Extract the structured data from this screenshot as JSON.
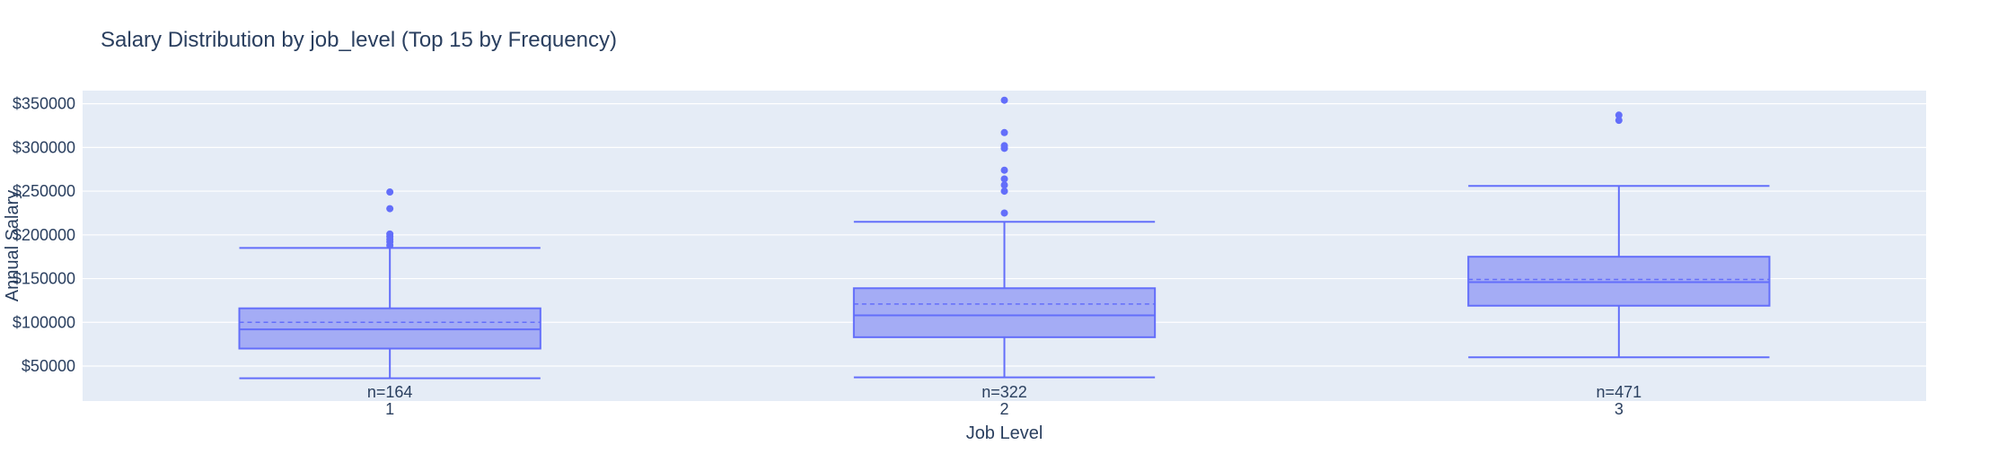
{
  "chart_data": {
    "type": "box",
    "title": "Salary Distribution by job_level (Top 15 by Frequency)",
    "xlabel": "Job Level",
    "ylabel": "Annual Salary",
    "ylim": [
      10000,
      365000
    ],
    "yticks": [
      50000,
      100000,
      150000,
      200000,
      250000,
      300000,
      350000
    ],
    "ytick_labels": [
      "$50000",
      "$100000",
      "$150000",
      "$200000",
      "$250000",
      "$300000",
      "$350000"
    ],
    "grid": true,
    "legend": "none",
    "colors": {
      "plot_bg": "#e5ecf6",
      "box_fill": "#a4acf5",
      "box_line": "#636efa",
      "grid": "#ffffff"
    },
    "categories": [
      "1",
      "2",
      "3"
    ],
    "boxes": [
      {
        "category": "1",
        "count_label": "n=164",
        "lower_fence": 36000,
        "q1": 70000,
        "median": 92000,
        "mean": 100000,
        "q3": 116000,
        "upper_fence": 185000,
        "outliers": [
          188000,
          192000,
          195000,
          198000,
          201000,
          230000,
          249000
        ]
      },
      {
        "category": "2",
        "count_label": "n=322",
        "lower_fence": 37000,
        "q1": 83000,
        "median": 108000,
        "mean": 121000,
        "q3": 139000,
        "upper_fence": 215000,
        "outliers": [
          225000,
          250000,
          257000,
          264000,
          274000,
          299000,
          302000,
          317000,
          354000
        ]
      },
      {
        "category": "3",
        "count_label": "n=471",
        "lower_fence": 60000,
        "q1": 119000,
        "median": 146000,
        "mean": 149000,
        "q3": 175000,
        "upper_fence": 256000,
        "outliers": [
          331000,
          337000
        ]
      }
    ]
  }
}
